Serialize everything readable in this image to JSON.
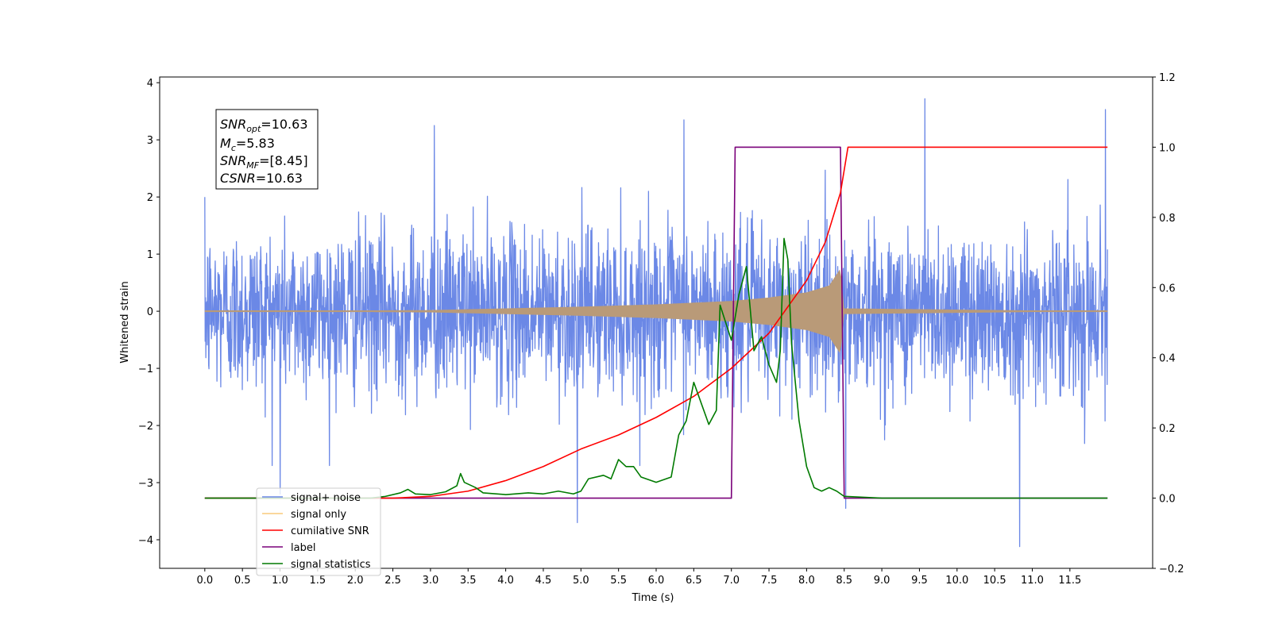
{
  "colors": {
    "signal_plus_noise": "#6b88e6",
    "signal_only": "#f5a623",
    "signal_overlap": "#b99a78",
    "cumulative_snr": "#ff0000",
    "label": "#7a007a",
    "signal_statistics": "#007a00"
  },
  "annotation": {
    "snr_opt_label": "SNR",
    "snr_opt_sub": "opt",
    "snr_opt_value": "=10.63",
    "mc_label": "M",
    "mc_sub": "c",
    "mc_value": "=5.83",
    "snr_mf_label": "SNR",
    "snr_mf_sub": "MF",
    "snr_mf_value": "=[8.45]",
    "csnr_label": "CSNR",
    "csnr_value": "=10.63"
  },
  "chart_data": {
    "type": "line",
    "xlabel": "Time (s)",
    "ylabel": "Whitened strain",
    "xlim": [
      -0.6,
      12.6
    ],
    "ylim": [
      -4.5,
      4.1
    ],
    "y2lim": [
      -0.2,
      1.2
    ],
    "x_ticks": [
      "0.0",
      "0.5",
      "1.0",
      "1.5",
      "2.0",
      "2.5",
      "3.0",
      "3.5",
      "4.0",
      "4.5",
      "5.0",
      "5.5",
      "6.0",
      "6.5",
      "7.0",
      "7.5",
      "8.0",
      "8.5",
      "9.0",
      "9.5",
      "10.0",
      "10.5",
      "11.0",
      "11.5"
    ],
    "y_ticks": [
      "−4",
      "−3",
      "−2",
      "−1",
      "0",
      "1",
      "2",
      "3",
      "4"
    ],
    "y2_ticks": [
      "−0.2",
      "0.0",
      "0.2",
      "0.4",
      "0.6",
      "0.8",
      "1.0",
      "1.2"
    ],
    "legend_position": "lower-left",
    "series": [
      {
        "name": "signal+ noise",
        "axis": "left",
        "note": "white-noise strain, amplitude about ±1.5 with spikes; notable spikes",
        "spikes": [
          [
            9.57,
            3.72
          ],
          [
            11.97,
            3.53
          ],
          [
            6.37,
            3.35
          ],
          [
            3.05,
            3.25
          ],
          [
            10.83,
            -4.12
          ],
          [
            4.95,
            -3.7
          ],
          [
            8.52,
            -3.45
          ],
          [
            1.0,
            -3.2
          ]
        ]
      },
      {
        "name": "signal only",
        "axis": "left",
        "note": "chirp envelope growing to merger",
        "envelope": [
          [
            0.0,
            0.0
          ],
          [
            3.0,
            0.02
          ],
          [
            4.0,
            0.05
          ],
          [
            5.0,
            0.08
          ],
          [
            6.0,
            0.12
          ],
          [
            7.0,
            0.18
          ],
          [
            7.5,
            0.24
          ],
          [
            8.0,
            0.33
          ],
          [
            8.3,
            0.45
          ],
          [
            8.45,
            0.75
          ],
          [
            8.5,
            0.05
          ],
          [
            12.0,
            0.0
          ]
        ]
      },
      {
        "name": "cumilative SNR",
        "axis": "right",
        "points": [
          [
            0.0,
            0.0
          ],
          [
            2.5,
            0.0
          ],
          [
            3.0,
            0.005
          ],
          [
            3.5,
            0.02
          ],
          [
            4.0,
            0.05
          ],
          [
            4.5,
            0.09
          ],
          [
            5.0,
            0.14
          ],
          [
            5.5,
            0.18
          ],
          [
            6.0,
            0.23
          ],
          [
            6.5,
            0.29
          ],
          [
            7.0,
            0.37
          ],
          [
            7.5,
            0.47
          ],
          [
            8.0,
            0.62
          ],
          [
            8.25,
            0.73
          ],
          [
            8.45,
            0.87
          ],
          [
            8.55,
            1.0
          ],
          [
            12.0,
            1.0
          ]
        ]
      },
      {
        "name": "label",
        "axis": "right",
        "points": [
          [
            0.0,
            0.0
          ],
          [
            7.0,
            0.0
          ],
          [
            7.05,
            1.0
          ],
          [
            8.45,
            1.0
          ],
          [
            8.5,
            0.0
          ],
          [
            12.0,
            0.0
          ]
        ]
      },
      {
        "name": "signal statistics",
        "axis": "right",
        "points": [
          [
            0.0,
            0.0
          ],
          [
            2.2,
            0.0
          ],
          [
            2.4,
            0.005
          ],
          [
            2.6,
            0.015
          ],
          [
            2.7,
            0.025
          ],
          [
            2.8,
            0.012
          ],
          [
            3.0,
            0.01
          ],
          [
            3.2,
            0.018
          ],
          [
            3.35,
            0.035
          ],
          [
            3.4,
            0.07
          ],
          [
            3.45,
            0.045
          ],
          [
            3.6,
            0.03
          ],
          [
            3.7,
            0.015
          ],
          [
            4.0,
            0.01
          ],
          [
            4.3,
            0.015
          ],
          [
            4.5,
            0.012
          ],
          [
            4.7,
            0.02
          ],
          [
            4.9,
            0.012
          ],
          [
            5.0,
            0.02
          ],
          [
            5.1,
            0.055
          ],
          [
            5.3,
            0.065
          ],
          [
            5.4,
            0.055
          ],
          [
            5.5,
            0.11
          ],
          [
            5.6,
            0.09
          ],
          [
            5.7,
            0.09
          ],
          [
            5.8,
            0.06
          ],
          [
            6.0,
            0.045
          ],
          [
            6.2,
            0.06
          ],
          [
            6.3,
            0.18
          ],
          [
            6.4,
            0.22
          ],
          [
            6.5,
            0.33
          ],
          [
            6.6,
            0.27
          ],
          [
            6.7,
            0.21
          ],
          [
            6.8,
            0.25
          ],
          [
            6.85,
            0.55
          ],
          [
            7.0,
            0.45
          ],
          [
            7.1,
            0.58
          ],
          [
            7.2,
            0.66
          ],
          [
            7.3,
            0.42
          ],
          [
            7.4,
            0.46
          ],
          [
            7.5,
            0.38
          ],
          [
            7.6,
            0.33
          ],
          [
            7.65,
            0.42
          ],
          [
            7.7,
            0.74
          ],
          [
            7.75,
            0.68
          ],
          [
            7.8,
            0.44
          ],
          [
            7.9,
            0.22
          ],
          [
            8.0,
            0.09
          ],
          [
            8.1,
            0.03
          ],
          [
            8.2,
            0.02
          ],
          [
            8.3,
            0.03
          ],
          [
            8.4,
            0.02
          ],
          [
            8.5,
            0.005
          ],
          [
            9.0,
            0.0
          ],
          [
            12.0,
            0.0
          ]
        ]
      }
    ]
  }
}
